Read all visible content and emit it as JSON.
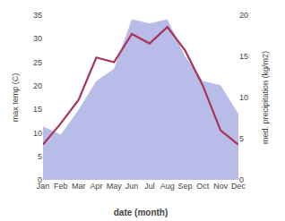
{
  "chart_data": {
    "type": "line",
    "categories": [
      "Jan",
      "Feb",
      "Mar",
      "Apr",
      "May",
      "Jun",
      "Jul",
      "Aug",
      "Sep",
      "Oct",
      "Nov",
      "Dec"
    ],
    "series": [
      {
        "type": "area",
        "color": "#b8bce8",
        "axis": "y2",
        "values": [
          6.5,
          5.5,
          8.5,
          12.0,
          13.5,
          19.5,
          19.0,
          19.5,
          15.0,
          12.0,
          11.5,
          8.0
        ]
      },
      {
        "type": "line",
        "color": "#aa3355",
        "values": [
          7.5,
          12.0,
          17.0,
          26.0,
          25.0,
          31.0,
          29.0,
          32.5,
          27.5,
          20.0,
          10.5,
          7.5
        ]
      }
    ],
    "xlabel": "date (month)",
    "ylabel": "max temp (C)",
    "y2label": "med. precipitation (kg/m2)",
    "ylim": [
      0,
      35
    ],
    "yticks": [
      0,
      5,
      10,
      15,
      20,
      25,
      30,
      35
    ],
    "y2lim": [
      0,
      20
    ],
    "y2ticks": [
      0,
      5,
      10,
      15,
      20
    ],
    "grid": false
  }
}
